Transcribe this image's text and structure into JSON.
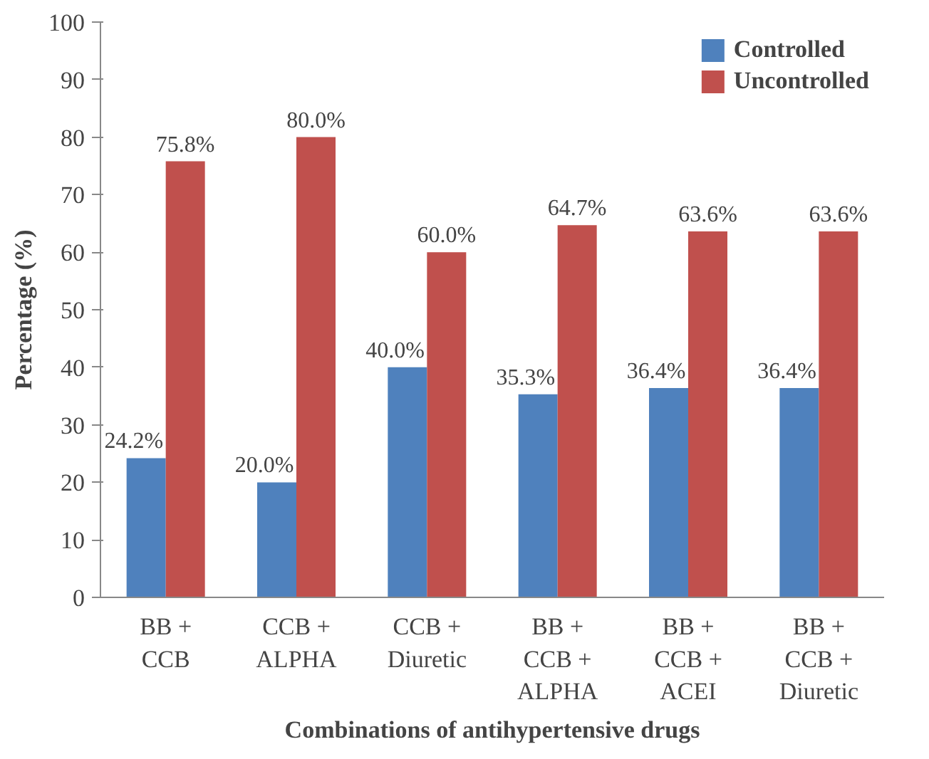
{
  "chart_data": {
    "type": "bar",
    "xlabel": "Combinations of antihypertensive drugs",
    "ylabel": "Percentage (%)",
    "categories": [
      "BB +\nCCB",
      "CCB +\nALPHA",
      "CCB +\nDiuretic",
      "BB +\nCCB +\nALPHA",
      "BB +\nCCB +\nACEI",
      "BB +\nCCB +\nDiuretic"
    ],
    "series": [
      {
        "name": "Controlled",
        "color": "#4f81bd",
        "values": [
          24.2,
          20.0,
          40.0,
          35.3,
          36.4,
          36.4
        ],
        "value_labels": [
          "24.2%",
          "20.0%",
          "40.0%",
          "35.3%",
          "36.4%",
          "36.4%"
        ]
      },
      {
        "name": "Uncontrolled",
        "color": "#c0504d",
        "values": [
          75.8,
          80.0,
          60.0,
          64.7,
          63.6,
          63.6
        ],
        "value_labels": [
          "75.8%",
          "80.0%",
          "60.0%",
          "64.7%",
          "63.6%",
          "63.6%"
        ]
      }
    ],
    "ylim": [
      0,
      100
    ],
    "yticks": [
      0,
      10,
      20,
      30,
      40,
      50,
      60,
      70,
      80,
      90,
      100
    ],
    "grid": false,
    "legend": "top right"
  }
}
